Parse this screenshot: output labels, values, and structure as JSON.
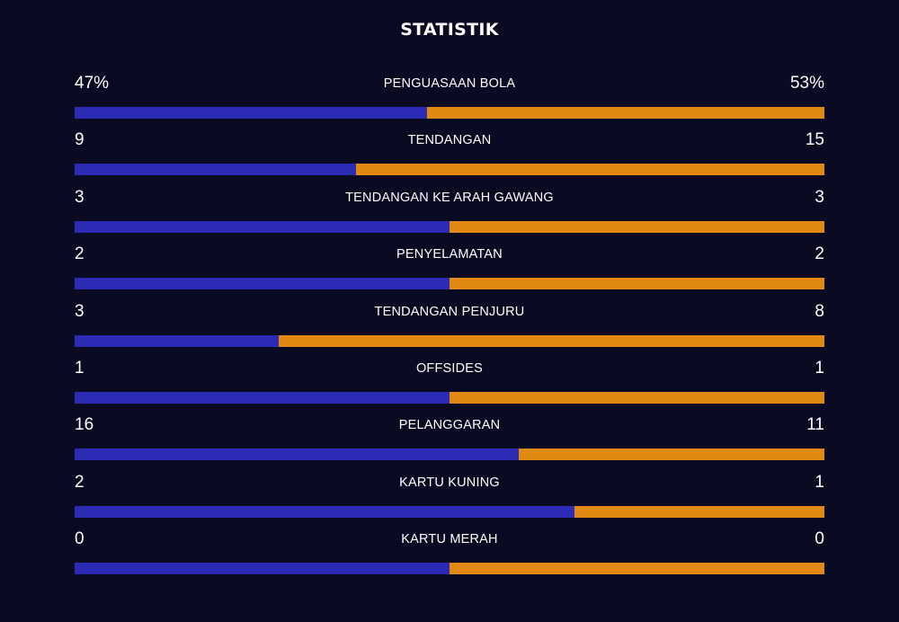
{
  "title": "STATISTIK",
  "colors": {
    "background": "#0a0a22",
    "home_bar": "#2b2bb5",
    "away_bar": "#e08a14",
    "text": "#ffffff"
  },
  "stats": [
    {
      "label": "PENGUASAAN BOLA",
      "home": "47%",
      "away": "53%",
      "home_share": 0.47
    },
    {
      "label": "TENDANGAN",
      "home": "9",
      "away": "15",
      "home_share": 0.375
    },
    {
      "label": "TENDANGAN KE ARAH GAWANG",
      "home": "3",
      "away": "3",
      "home_share": 0.5
    },
    {
      "label": "PENYELAMATAN",
      "home": "2",
      "away": "2",
      "home_share": 0.5
    },
    {
      "label": "TENDANGAN PENJURU",
      "home": "3",
      "away": "8",
      "home_share": 0.2727
    },
    {
      "label": "OFFSIDES",
      "home": "1",
      "away": "1",
      "home_share": 0.5
    },
    {
      "label": "PELANGGARAN",
      "home": "16",
      "away": "11",
      "home_share": 0.5926
    },
    {
      "label": "KARTU KUNING",
      "home": "2",
      "away": "1",
      "home_share": 0.6667
    },
    {
      "label": "KARTU MERAH",
      "home": "0",
      "away": "0",
      "home_share": 0.5
    }
  ]
}
